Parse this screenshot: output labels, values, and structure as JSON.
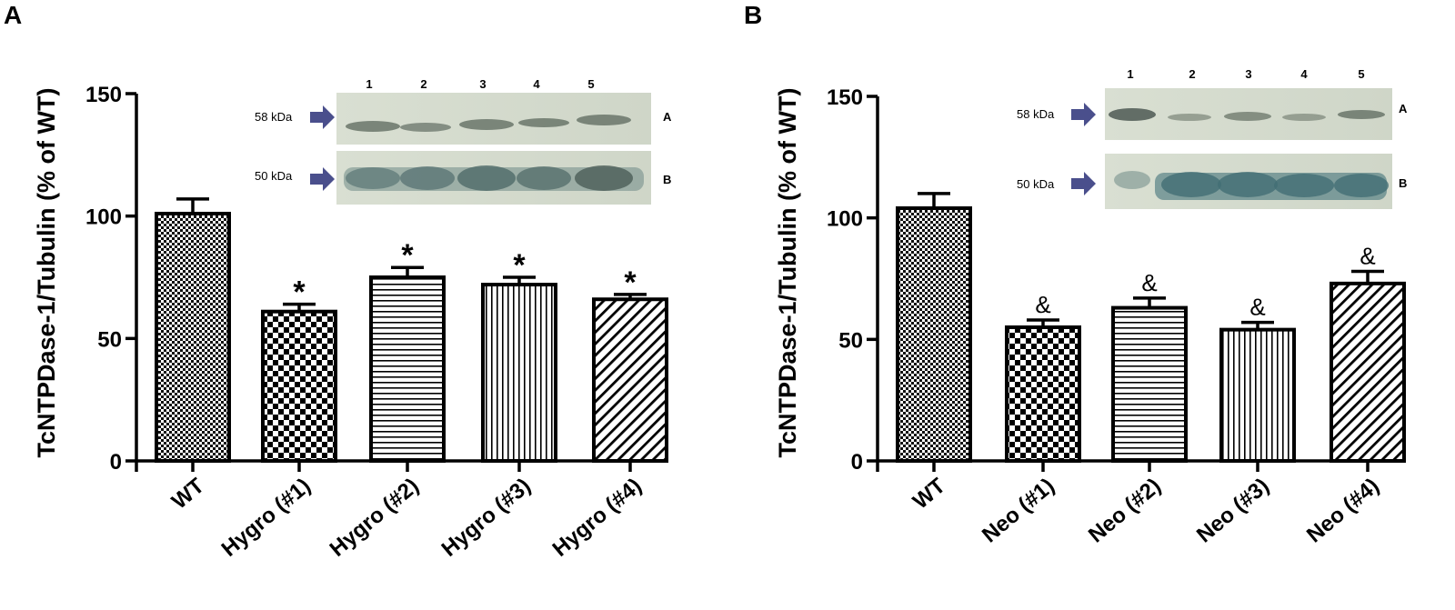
{
  "chart_data": [
    {
      "type": "bar",
      "panel": "A",
      "ylabel": "TcNTPDase-1/Tubulin (% of WT)",
      "yticks": [
        0,
        50,
        100,
        150
      ],
      "ylim": [
        0,
        150
      ],
      "categories": [
        "WT",
        "Hygro (#1)",
        "Hygro (#2)",
        "Hygro (#3)",
        "Hygro (#4)"
      ],
      "values": [
        101,
        61,
        75,
        72,
        66
      ],
      "errors": [
        6,
        3,
        4,
        3,
        2
      ],
      "patterns": [
        "fine-dots",
        "checker",
        "horizontal",
        "vertical",
        "diagonal"
      ],
      "significance": [
        "",
        "*",
        "*",
        "*",
        "*"
      ],
      "blot": {
        "lanes": [
          "1",
          "2",
          "3",
          "4",
          "5"
        ],
        "markers": [
          "58 kDa",
          "50 kDa"
        ],
        "row_labels": [
          "A",
          "B"
        ]
      }
    },
    {
      "type": "bar",
      "panel": "B",
      "ylabel": "TcNTPDase-1/Tubulin (% of WT)",
      "yticks": [
        0,
        50,
        100,
        150
      ],
      "ylim": [
        0,
        150
      ],
      "categories": [
        "WT",
        "Neo (#1)",
        "Neo (#2)",
        "Neo (#3)",
        "Neo (#4)"
      ],
      "values": [
        104,
        55,
        63,
        54,
        73
      ],
      "errors": [
        6,
        3,
        4,
        3,
        5
      ],
      "patterns": [
        "fine-dots",
        "checker",
        "horizontal",
        "vertical",
        "diagonal"
      ],
      "significance": [
        "",
        "&",
        "&",
        "&",
        "&"
      ],
      "blot": {
        "lanes": [
          "1",
          "2",
          "3",
          "4",
          "5"
        ],
        "markers": [
          "58 kDa",
          "50 kDa"
        ],
        "row_labels": [
          "A",
          "B"
        ]
      }
    }
  ]
}
